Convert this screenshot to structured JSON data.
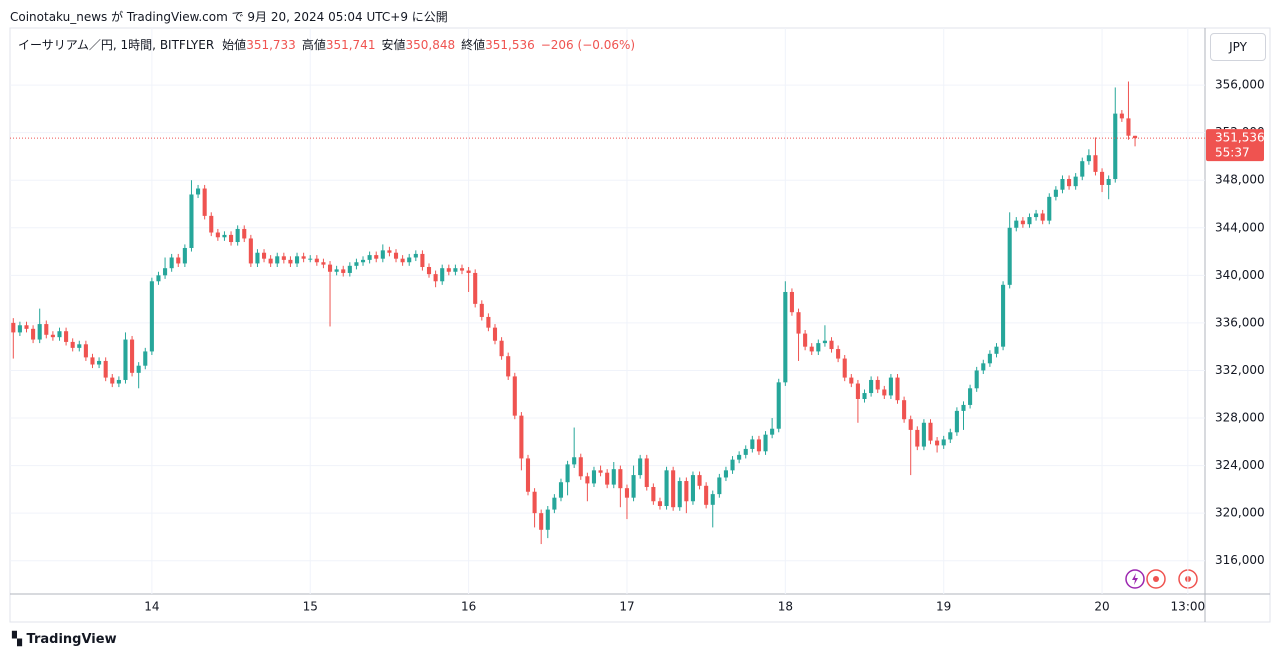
{
  "header": {
    "text": "Coinotaku_news が TradingView.com で 9月 20, 2024 05:04 UTC+9 に公開"
  },
  "footer": {
    "brand": "TradingView"
  },
  "chart_data": {
    "type": "candlestick",
    "title": "イーサリアム／円, 1時間, BITFLYER",
    "legend_values": [
      {
        "name": "始値",
        "value": 351733,
        "label": "351,733"
      },
      {
        "name": "高値",
        "value": 351741,
        "label": "351,741"
      },
      {
        "name": "安値",
        "value": 350848,
        "label": "350,848"
      },
      {
        "name": "終値",
        "value": 351536,
        "label": "351,536"
      }
    ],
    "change": {
      "value": -206,
      "percent": -0.06,
      "label": "−206 (−0.06%)"
    },
    "currency": "JPY",
    "last_price": {
      "value": 351536,
      "label": "351,536"
    },
    "countdown": "55:37",
    "up_color": "#26a69a",
    "down_color": "#ef5350",
    "grid": true,
    "xlim": [
      -0.5,
      180.6
    ],
    "xticks": [
      {
        "value": 21,
        "label": "14"
      },
      {
        "value": 45,
        "label": "15"
      },
      {
        "value": 69,
        "label": "16"
      },
      {
        "value": 93,
        "label": "17"
      },
      {
        "value": 117,
        "label": "18"
      },
      {
        "value": 141,
        "label": "19"
      },
      {
        "value": 165,
        "label": "20"
      },
      {
        "value": 178,
        "label": "13:00"
      }
    ],
    "ylim": [
      313200,
      360800
    ],
    "yticks": [
      {
        "value": 316000,
        "label": "316,000"
      },
      {
        "value": 320000,
        "label": "320,000"
      },
      {
        "value": 324000,
        "label": "324,000"
      },
      {
        "value": 328000,
        "label": "328,000"
      },
      {
        "value": 332000,
        "label": "332,000"
      },
      {
        "value": 336000,
        "label": "336,000"
      },
      {
        "value": 340000,
        "label": "340,000"
      },
      {
        "value": 344000,
        "label": "344,000"
      },
      {
        "value": 348000,
        "label": "348,000"
      },
      {
        "value": 352000,
        "label": "352,000"
      },
      {
        "value": 356000,
        "label": "356,000"
      }
    ],
    "values": [
      [
        336000,
        336400,
        333000,
        335200
      ],
      [
        335200,
        336100,
        334900,
        335800
      ],
      [
        335800,
        336100,
        335200,
        335500
      ],
      [
        335500,
        335800,
        334300,
        334600
      ],
      [
        334600,
        337200,
        334300,
        335900
      ],
      [
        335900,
        336200,
        334700,
        335000
      ],
      [
        335000,
        335300,
        334500,
        334800
      ],
      [
        334800,
        335600,
        334500,
        335300
      ],
      [
        335300,
        335600,
        334100,
        334400
      ],
      [
        334400,
        334700,
        333600,
        333900
      ],
      [
        333900,
        334500,
        333600,
        334200
      ],
      [
        334200,
        334500,
        332800,
        333100
      ],
      [
        333100,
        333400,
        332200,
        332500
      ],
      [
        332500,
        333100,
        332200,
        332800
      ],
      [
        332800,
        333100,
        331100,
        331400
      ],
      [
        331400,
        331700,
        330600,
        330900
      ],
      [
        330900,
        331500,
        330600,
        331200
      ],
      [
        331200,
        335200,
        330900,
        334600
      ],
      [
        334600,
        334900,
        331500,
        331800
      ],
      [
        331800,
        332700,
        330500,
        332400
      ],
      [
        332400,
        333900,
        332100,
        333600
      ],
      [
        333600,
        339800,
        333300,
        339500
      ],
      [
        339500,
        340300,
        339200,
        340000
      ],
      [
        340000,
        341500,
        339700,
        340600
      ],
      [
        340600,
        341800,
        340300,
        341500
      ],
      [
        341500,
        341800,
        340700,
        341000
      ],
      [
        341000,
        342600,
        340700,
        342300
      ],
      [
        342300,
        348000,
        342000,
        346800
      ],
      [
        346800,
        347600,
        346500,
        347300
      ],
      [
        347300,
        347600,
        344700,
        345000
      ],
      [
        345000,
        345300,
        343300,
        343600
      ],
      [
        343600,
        343900,
        342900,
        343200
      ],
      [
        343200,
        343700,
        342900,
        343400
      ],
      [
        343400,
        343700,
        342500,
        342800
      ],
      [
        342800,
        344200,
        342500,
        343900
      ],
      [
        343900,
        344200,
        342800,
        343100
      ],
      [
        343100,
        343400,
        340700,
        341000
      ],
      [
        341000,
        342200,
        340700,
        341900
      ],
      [
        341900,
        342200,
        341100,
        341400
      ],
      [
        341400,
        341700,
        340700,
        341000
      ],
      [
        341000,
        341900,
        340700,
        341600
      ],
      [
        341600,
        341900,
        341000,
        341300
      ],
      [
        341300,
        341600,
        340700,
        341000
      ],
      [
        341000,
        341900,
        340700,
        341600
      ],
      [
        341600,
        341900,
        341100,
        341400
      ],
      [
        341400,
        341700,
        341100,
        341400
      ],
      [
        341400,
        341700,
        340800,
        341100
      ],
      [
        341100,
        341400,
        340600,
        340900
      ],
      [
        340900,
        341200,
        335700,
        340300
      ],
      [
        340300,
        340800,
        340000,
        340500
      ],
      [
        340500,
        340800,
        339900,
        340200
      ],
      [
        340200,
        341100,
        339900,
        340800
      ],
      [
        340800,
        341400,
        340500,
        341100
      ],
      [
        341100,
        341600,
        340800,
        341300
      ],
      [
        341300,
        342000,
        341000,
        341700
      ],
      [
        341700,
        342000,
        341100,
        341400
      ],
      [
        341400,
        342600,
        341100,
        342100
      ],
      [
        342100,
        342400,
        341600,
        341900
      ],
      [
        341900,
        342200,
        341100,
        341400
      ],
      [
        341400,
        341700,
        340800,
        341100
      ],
      [
        341100,
        341800,
        340800,
        341500
      ],
      [
        341500,
        342100,
        341200,
        341800
      ],
      [
        341800,
        342100,
        340400,
        340700
      ],
      [
        340700,
        341000,
        339800,
        340100
      ],
      [
        340100,
        340400,
        339000,
        339500
      ],
      [
        339500,
        340900,
        339200,
        340600
      ],
      [
        340600,
        340900,
        340000,
        340300
      ],
      [
        340300,
        340900,
        340000,
        340600
      ],
      [
        340600,
        340900,
        340100,
        340400
      ],
      [
        340400,
        340700,
        338600,
        340200
      ],
      [
        340200,
        340500,
        337300,
        337600
      ],
      [
        337600,
        337900,
        336200,
        336500
      ],
      [
        336500,
        336800,
        335300,
        335600
      ],
      [
        335600,
        335900,
        334200,
        334500
      ],
      [
        334500,
        334800,
        332900,
        333200
      ],
      [
        333200,
        333500,
        331200,
        331500
      ],
      [
        331500,
        331800,
        327900,
        328200
      ],
      [
        328200,
        328500,
        323600,
        324600
      ],
      [
        324600,
        324900,
        321500,
        321800
      ],
      [
        321800,
        322100,
        318800,
        320000
      ],
      [
        320000,
        320300,
        317400,
        318600
      ],
      [
        318600,
        320600,
        317900,
        320300
      ],
      [
        320300,
        321600,
        320000,
        321300
      ],
      [
        321300,
        322900,
        321000,
        322600
      ],
      [
        322600,
        324400,
        321500,
        324100
      ],
      [
        324100,
        327200,
        323800,
        324700
      ],
      [
        324700,
        325000,
        322800,
        323100
      ],
      [
        323100,
        323400,
        321000,
        322500
      ],
      [
        322500,
        323900,
        322200,
        323600
      ],
      [
        323600,
        324000,
        323100,
        323400
      ],
      [
        323400,
        323700,
        322100,
        322400
      ],
      [
        322400,
        324300,
        322100,
        323700
      ],
      [
        323700,
        324000,
        320500,
        322100
      ],
      [
        322100,
        322400,
        319500,
        321300
      ],
      [
        321300,
        324000,
        321000,
        323200
      ],
      [
        323200,
        324900,
        322900,
        324600
      ],
      [
        324600,
        324900,
        321900,
        322200
      ],
      [
        322200,
        322500,
        320700,
        321000
      ],
      [
        321000,
        321300,
        320300,
        320600
      ],
      [
        320600,
        323900,
        320300,
        323600
      ],
      [
        323600,
        323900,
        320200,
        320500
      ],
      [
        320500,
        323000,
        320200,
        322700
      ],
      [
        322700,
        323000,
        320000,
        321000
      ],
      [
        321000,
        323500,
        320700,
        323200
      ],
      [
        323200,
        323500,
        322000,
        322300
      ],
      [
        322300,
        322600,
        320400,
        320700
      ],
      [
        320700,
        321900,
        318800,
        321600
      ],
      [
        321600,
        323300,
        321300,
        323000
      ],
      [
        323000,
        323900,
        322700,
        323600
      ],
      [
        323600,
        324800,
        323300,
        324500
      ],
      [
        324500,
        325200,
        324200,
        324900
      ],
      [
        324900,
        325700,
        324600,
        325400
      ],
      [
        325400,
        326500,
        325100,
        326200
      ],
      [
        326200,
        326500,
        324900,
        325200
      ],
      [
        325200,
        326900,
        324900,
        326600
      ],
      [
        326600,
        328000,
        326300,
        327100
      ],
      [
        327100,
        331300,
        326800,
        331000
      ],
      [
        331000,
        339500,
        330700,
        338600
      ],
      [
        338600,
        338900,
        336600,
        336900
      ],
      [
        336900,
        337200,
        332800,
        335100
      ],
      [
        335100,
        335400,
        333700,
        334000
      ],
      [
        334000,
        334300,
        333300,
        333600
      ],
      [
        333600,
        334600,
        333300,
        334300
      ],
      [
        334300,
        335800,
        334000,
        334500
      ],
      [
        334500,
        334800,
        333500,
        333800
      ],
      [
        333800,
        334100,
        332700,
        333000
      ],
      [
        333000,
        333300,
        331100,
        331400
      ],
      [
        331400,
        331700,
        330600,
        330900
      ],
      [
        330900,
        331200,
        327600,
        329600
      ],
      [
        329600,
        330400,
        329300,
        330100
      ],
      [
        330100,
        331500,
        329800,
        331200
      ],
      [
        331200,
        331500,
        330100,
        330400
      ],
      [
        330400,
        330700,
        329600,
        329900
      ],
      [
        329900,
        331700,
        329600,
        331400
      ],
      [
        331400,
        331700,
        329200,
        329500
      ],
      [
        329500,
        329800,
        327600,
        327900
      ],
      [
        327900,
        328200,
        323200,
        327000
      ],
      [
        327000,
        327300,
        325300,
        325600
      ],
      [
        325600,
        327900,
        325300,
        327600
      ],
      [
        327600,
        327900,
        325800,
        326100
      ],
      [
        326100,
        326400,
        325100,
        325700
      ],
      [
        325700,
        326500,
        325400,
        326200
      ],
      [
        326200,
        327100,
        325900,
        326800
      ],
      [
        326800,
        328900,
        326500,
        328600
      ],
      [
        328600,
        329400,
        327000,
        329100
      ],
      [
        329100,
        330800,
        328800,
        330500
      ],
      [
        330500,
        332300,
        330200,
        332000
      ],
      [
        332000,
        332900,
        331700,
        332600
      ],
      [
        332600,
        333700,
        332300,
        333400
      ],
      [
        333400,
        334300,
        333100,
        334000
      ],
      [
        334000,
        339500,
        333700,
        339200
      ],
      [
        339200,
        345300,
        338900,
        344000
      ],
      [
        344000,
        344900,
        343700,
        344600
      ],
      [
        344600,
        344900,
        344000,
        344300
      ],
      [
        344300,
        345200,
        344000,
        344900
      ],
      [
        344900,
        345500,
        344600,
        345200
      ],
      [
        345200,
        345500,
        344300,
        344600
      ],
      [
        344600,
        346900,
        344300,
        346600
      ],
      [
        346600,
        347500,
        346300,
        347200
      ],
      [
        347200,
        348400,
        346900,
        348100
      ],
      [
        348100,
        348400,
        347200,
        347500
      ],
      [
        347500,
        348600,
        347200,
        348300
      ],
      [
        348300,
        349900,
        348000,
        349600
      ],
      [
        349600,
        350600,
        349300,
        350100
      ],
      [
        350100,
        351600,
        348400,
        348700
      ],
      [
        348700,
        349000,
        347000,
        347600
      ],
      [
        347600,
        348400,
        346400,
        348100
      ],
      [
        348100,
        355800,
        347800,
        353600
      ],
      [
        353600,
        353900,
        352900,
        353200
      ],
      [
        353200,
        356300,
        351400,
        351742
      ],
      [
        351733,
        351741,
        350848,
        351536
      ]
    ]
  }
}
